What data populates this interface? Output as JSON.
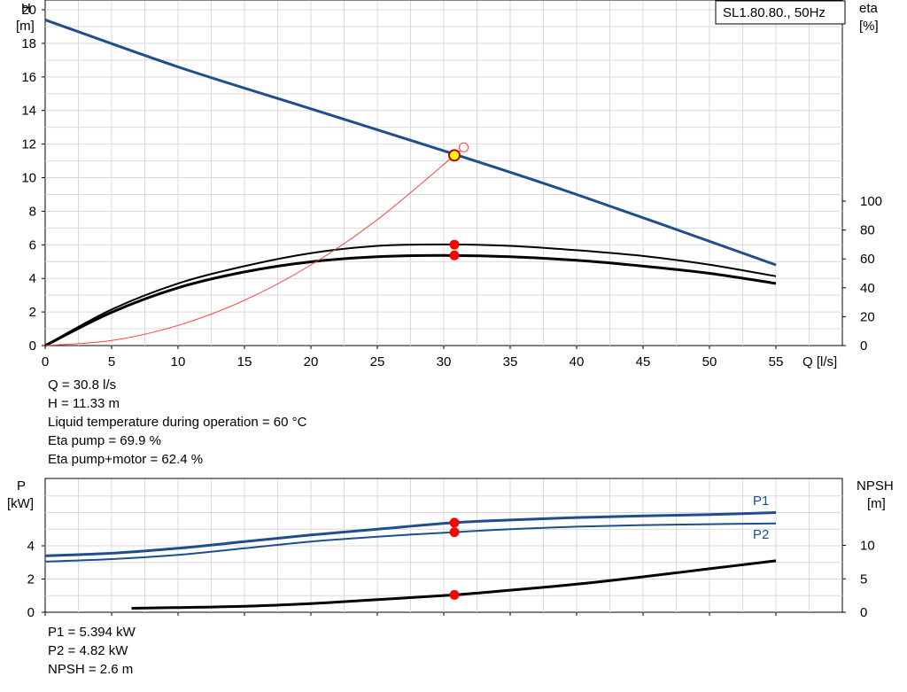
{
  "legend_box": "SL1.80.80., 50Hz",
  "chart_data": [
    {
      "type": "line",
      "title": "",
      "y_axis_label": [
        "H",
        "[m]"
      ],
      "y2_axis_label": [
        "eta",
        "[%]"
      ],
      "x_axis_label": "Q [l/s]",
      "xlim": [
        0,
        60
      ],
      "ylim": [
        0,
        20
      ],
      "y2lim": [
        0,
        100
      ],
      "x_ticks": [
        "0",
        "5",
        "10",
        "15",
        "20",
        "25",
        "30",
        "35",
        "40",
        "45",
        "50",
        "55"
      ],
      "y_ticks": [
        "0",
        "2",
        "4",
        "6",
        "8",
        "10",
        "12",
        "14",
        "16",
        "18",
        "20"
      ],
      "y2_ticks": [
        "0",
        "20",
        "40",
        "60",
        "80",
        "100"
      ],
      "grid": true,
      "series": [
        {
          "name": "H",
          "axis": "left",
          "color": "#1f4e8c",
          "x": [
            0,
            10,
            20,
            30,
            40,
            55
          ],
          "y": [
            19.4,
            16.6,
            14.1,
            11.6,
            9.0,
            4.8
          ]
        },
        {
          "name": "eta pump",
          "axis": "right",
          "color": "#000000",
          "x": [
            0,
            5,
            10,
            15,
            20,
            25,
            30,
            35,
            40,
            45,
            50,
            55
          ],
          "y": [
            0,
            25,
            43,
            55,
            64,
            69,
            70,
            69,
            66,
            62,
            56,
            48
          ]
        },
        {
          "name": "eta pump+motor",
          "axis": "right",
          "color": "#000000",
          "x": [
            0,
            5,
            10,
            15,
            20,
            25,
            30,
            35,
            40,
            45,
            50,
            55
          ],
          "y": [
            0,
            23,
            40,
            51,
            58,
            61.5,
            62.4,
            61.5,
            59,
            55,
            50,
            43
          ]
        },
        {
          "name": "system curve",
          "axis": "left",
          "color": "#ff4040",
          "x": [
            0,
            5,
            10,
            15,
            20,
            25,
            30.8,
            31.5
          ],
          "y": [
            0,
            0.3,
            1.2,
            2.7,
            4.8,
            7.5,
            11.33,
            11.8
          ]
        }
      ],
      "operating_point": {
        "Q": 30.8,
        "H": 11.33,
        "eta_pump": 69.9,
        "eta_pump_motor": 62.4
      }
    },
    {
      "type": "line",
      "title": "",
      "y_axis_label": [
        "P",
        "[kW]"
      ],
      "y2_axis_label": [
        "NPSH",
        "[m]"
      ],
      "xlim": [
        0,
        60
      ],
      "ylim": [
        0,
        8
      ],
      "y2lim": [
        0,
        20
      ],
      "y_ticks": [
        "0",
        "2",
        "4"
      ],
      "y2_ticks": [
        "0",
        "5",
        "10"
      ],
      "grid": true,
      "series": [
        {
          "name": "P1",
          "axis": "left",
          "color": "#1f4e8c",
          "x": [
            0,
            5,
            10,
            15,
            20,
            25,
            30.8,
            35,
            40,
            45,
            50,
            55
          ],
          "y": [
            3.4,
            3.55,
            3.85,
            4.25,
            4.65,
            5.0,
            5.394,
            5.55,
            5.7,
            5.8,
            5.88,
            6.0
          ]
        },
        {
          "name": "P2",
          "axis": "left",
          "color": "#1f4e8c",
          "x": [
            0,
            5,
            10,
            15,
            20,
            25,
            30.8,
            35,
            40,
            45,
            50,
            55
          ],
          "y": [
            3.05,
            3.2,
            3.45,
            3.85,
            4.25,
            4.55,
            4.82,
            5.0,
            5.15,
            5.25,
            5.3,
            5.35
          ]
        },
        {
          "name": "NPSH",
          "axis": "right",
          "color": "#000000",
          "x": [
            6.5,
            10,
            15,
            20,
            25,
            30.8,
            35,
            40,
            45,
            50,
            55
          ],
          "y": [
            0.6,
            0.7,
            0.9,
            1.3,
            1.9,
            2.6,
            3.3,
            4.2,
            5.3,
            6.5,
            7.7
          ]
        }
      ],
      "series_labels": [
        "P1",
        "P2"
      ],
      "operating_point": {
        "Q": 30.8,
        "P1": 5.394,
        "P2": 4.82,
        "NPSH": 2.6
      }
    }
  ],
  "info_top": [
    "Q = 30.8 l/s",
    "H = 11.33 m",
    "Liquid temperature during operation = 60 °C",
    "Eta pump = 69.9 %",
    "Eta pump+motor = 62.4 %"
  ],
  "info_bottom": [
    "P1 = 5.394 kW",
    "P2 = 4.82 kW",
    "NPSH = 2.6 m"
  ],
  "colors": {
    "curve_blue": "#1f4e8c",
    "system_red": "#ff4040",
    "point_red": "#ff0000",
    "point_yellow": "#ffff00",
    "grid": "#d9d9d9"
  }
}
